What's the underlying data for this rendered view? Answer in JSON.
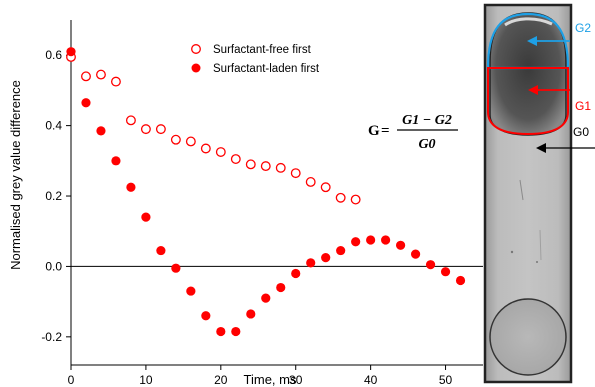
{
  "chart_data": {
    "type": "scatter",
    "xlabel": "Time, ms",
    "ylabel": "Normalised grey value difference",
    "xlim": [
      0,
      55
    ],
    "ylim": [
      -0.28,
      0.7
    ],
    "xticks": [
      0,
      10,
      20,
      30,
      40,
      50
    ],
    "yticks": [
      -0.2,
      0.0,
      0.2,
      0.4,
      0.6
    ],
    "ytick_labels": [
      "-0.2",
      "0.0",
      "0.2",
      "0.4",
      "0.6"
    ],
    "zero_line": true,
    "legend_position": "top-center",
    "series": [
      {
        "name": "Surfactant-free first",
        "marker": "open-circle",
        "color": "#ff0000",
        "x": [
          0,
          2,
          4,
          6,
          8,
          10,
          12,
          14,
          16,
          18,
          20,
          22,
          24,
          26,
          28,
          30,
          32,
          34,
          36,
          38
        ],
        "y": [
          0.595,
          0.54,
          0.545,
          0.525,
          0.415,
          0.39,
          0.39,
          0.36,
          0.355,
          0.335,
          0.325,
          0.305,
          0.29,
          0.285,
          0.28,
          0.265,
          0.24,
          0.225,
          0.195,
          0.19
        ]
      },
      {
        "name": "Surfactant-laden first",
        "marker": "filled-circle",
        "color": "#ff0000",
        "x": [
          0,
          2,
          4,
          6,
          8,
          10,
          12,
          14,
          16,
          18,
          20,
          22,
          24,
          26,
          28,
          30,
          32,
          34,
          36,
          38,
          40,
          42,
          44,
          46,
          48,
          50,
          52
        ],
        "y": [
          0.61,
          0.465,
          0.385,
          0.3,
          0.225,
          0.14,
          0.045,
          -0.005,
          -0.07,
          -0.14,
          -0.185,
          -0.185,
          -0.135,
          -0.09,
          -0.06,
          -0.02,
          0.01,
          0.025,
          0.045,
          0.07,
          0.075,
          0.075,
          0.06,
          0.035,
          0.005,
          -0.015,
          -0.04
        ]
      }
    ],
    "formula": {
      "lhs": "G",
      "numerator": "G1 − G2",
      "denominator": "G0"
    },
    "image_annotations": [
      {
        "label": "G2",
        "color": "#1ea0e6"
      },
      {
        "label": "G1",
        "color": "#ff0000"
      },
      {
        "label": "G0",
        "color": "#000000"
      }
    ]
  }
}
